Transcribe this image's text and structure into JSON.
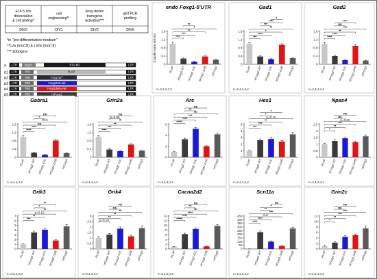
{
  "protocol": {
    "stages": [
      {
        "label": "E16.5 ncx\ndissociation\n& cell plating*",
        "day": "DIV0"
      },
      {
        "label": "cell\nengineering**",
        "day": "DIV1"
      },
      {
        "label": "doxy-driven\ntransgene\nactivation***",
        "day": "DIV2"
      },
      {
        "label": "qRTPCR\nprofiling",
        "day": "DIV6"
      }
    ],
    "notes": [
      "*in \"pro-differentiative medium\"",
      "**LVa (moi=8) & LVbs (moi=8)",
      "*** 100ng/ml"
    ]
  },
  "constructs": {
    "a": {
      "id": "a",
      "parts": [
        "LTR",
        "pSyn1",
        "rtTA-M2",
        "LTR"
      ]
    },
    "rows": [
      {
        "id": "b1",
        "payload": "PLAP"
      },
      {
        "id": "b2",
        "payload": "Foxg1WT"
      },
      {
        "id": "b3",
        "payload": "Foxg1K2L/ab"
      },
      {
        "id": "b4",
        "payload": "Foxg1delta-AB"
      },
      {
        "id": "b5",
        "payload": "mFoxg1"
      }
    ],
    "ltr": "LTR",
    "tre": "TRE"
  },
  "x_categories": [
    "PLAP",
    "hFoxg1 WT",
    "hFoxg1 K2L",
    "hFoxg1 ΔAB",
    "mFoxg1"
  ],
  "colors": {
    "PLAP": "#c8c8c8",
    "hFoxg1 WT": "#3a3a3a",
    "hFoxg1 K2L": "#1a1ad6",
    "hFoxg1 ΔAB": "#e01414",
    "mFoxg1": "#5a5a5a"
  },
  "ylabel": "[Gapdh-norm mRNA]",
  "chart_data": [
    {
      "type": "bar",
      "title": "endo Foxg1-5'UTR",
      "categories": [
        "PLAP",
        "hFoxg1 WT",
        "hFoxg1 K2L",
        "hFoxg1 ΔAB",
        "mFoxg1"
      ],
      "values": [
        1.0,
        0.28,
        0.12,
        0.38,
        0.22
      ],
      "errors": [
        0.07,
        0.03,
        0.02,
        0.05,
        0.03
      ],
      "ylim": [
        0,
        1.6
      ],
      "yticks": [
        0,
        0.4,
        0.8,
        1.2,
        1.6
      ],
      "n": "n=3,3,3,3,3",
      "ylabel": "[Gapdh-norm mRNA]",
      "sig": [
        "***",
        "***",
        "**",
        "*",
        "**"
      ]
    },
    {
      "type": "bar",
      "title": "Gad1",
      "categories": [
        "PLAP",
        "hFoxg1 WT",
        "hFoxg1 K2L",
        "hFoxg1 ΔAB",
        "mFoxg1"
      ],
      "values": [
        1.0,
        0.38,
        0.25,
        0.95,
        0.3
      ],
      "errors": [
        0.06,
        0.03,
        0.02,
        0.05,
        0.03
      ],
      "ylim": [
        0,
        1.6
      ],
      "yticks": [
        0,
        0.4,
        0.8,
        1.2,
        1.6
      ],
      "n": "n=3,4,4,4,4",
      "sig": [
        "***",
        "****",
        "*",
        "**",
        "***",
        "****",
        "*"
      ]
    },
    {
      "type": "bar",
      "title": "Gad2",
      "categories": [
        "PLAP",
        "hFoxg1 WT",
        "hFoxg1 K2L",
        "hFoxg1 ΔAB",
        "mFoxg1"
      ],
      "values": [
        1.0,
        0.4,
        0.2,
        0.9,
        0.18
      ],
      "errors": [
        0.06,
        0.03,
        0.02,
        0.05,
        0.02
      ],
      "ylim": [
        0,
        1.6
      ],
      "yticks": [
        0,
        0.4,
        0.8,
        1.2,
        1.6
      ],
      "n": "n=4,4,4,4,4",
      "sig": [
        "****",
        "****",
        "**",
        "***",
        "ns",
        "****"
      ]
    },
    {
      "type": "bar",
      "title": "Gabra1",
      "categories": [
        "PLAP",
        "hFoxg1 WT",
        "hFoxg1 K2L",
        "hFoxg1 ΔAB",
        "mFoxg1"
      ],
      "values": [
        1.0,
        0.22,
        0.12,
        0.82,
        0.2
      ],
      "errors": [
        0.06,
        0.03,
        0.02,
        0.05,
        0.03
      ],
      "ylim": [
        0,
        1.6
      ],
      "yticks": [
        0,
        0.4,
        0.8,
        1.2,
        1.6
      ],
      "n": "n=4,4,4,4,4",
      "sig": [
        "****",
        "****",
        "ns",
        "*****",
        "*",
        "ns"
      ]
    },
    {
      "type": "bar",
      "title": "Grin2a",
      "categories": [
        "PLAP",
        "hFoxg1 WT",
        "hFoxg1 K2L",
        "hFoxg1 ΔAB",
        "mFoxg1"
      ],
      "values": [
        1.0,
        0.38,
        0.3,
        0.62,
        0.32
      ],
      "errors": [
        0.06,
        0.04,
        0.03,
        0.05,
        0.03
      ],
      "ylim": [
        0,
        1.6
      ],
      "yticks": [
        0,
        0.4,
        0.8,
        1.2,
        1.6
      ],
      "n": "n=4,4,4,4,4",
      "sig": [
        "****",
        "***",
        "**",
        "**",
        "p=0.08",
        "ns"
      ]
    },
    {
      "type": "bar",
      "title": "Arc",
      "categories": [
        "PLAP",
        "hFoxg1 WT",
        "hFoxg1 K2L",
        "hFoxg1 ΔAB",
        "mFoxg1"
      ],
      "values": [
        1.0,
        3.3,
        5.2,
        2.0,
        4.2
      ],
      "errors": [
        0.1,
        0.2,
        0.25,
        0.15,
        0.2
      ],
      "ylim": [
        0,
        6
      ],
      "yticks": [
        0,
        2,
        4,
        6
      ],
      "n": "n=4,4,4,4,4",
      "sig": [
        "*****",
        "****",
        "***",
        "***",
        "**",
        "ns"
      ]
    },
    {
      "type": "bar",
      "title": "Hes1",
      "categories": [
        "PLAP",
        "hFoxg1 WT",
        "hFoxg1 K2L",
        "hFoxg1 ΔAB",
        "mFoxg1"
      ],
      "values": [
        1.0,
        2.6,
        2.8,
        2.4,
        3.5
      ],
      "errors": [
        0.1,
        0.2,
        0.2,
        0.15,
        0.3
      ],
      "ylim": [
        0,
        5
      ],
      "yticks": [
        0,
        1,
        2,
        3,
        4,
        5
      ],
      "n": "n=3,4,4,4,4",
      "sig": [
        "***",
        "***",
        "**",
        "p=0.10",
        "*",
        "*"
      ]
    },
    {
      "type": "bar",
      "title": "Npas4",
      "categories": [
        "PLAP",
        "hFoxg1 WT",
        "hFoxg1 K2L",
        "hFoxg1 ΔAB",
        "mFoxg1"
      ],
      "values": [
        1.0,
        1.25,
        1.45,
        1.15,
        1.6
      ],
      "errors": [
        0.08,
        0.08,
        0.08,
        0.07,
        0.1
      ],
      "ylim": [
        0,
        2.5
      ],
      "yticks": [
        0,
        0.5,
        1,
        1.5,
        2,
        2.5
      ],
      "n": "n=4,4,3,4,4",
      "sig": [
        "*",
        "**",
        "***",
        "p=0.08",
        "ns",
        "ns"
      ]
    },
    {
      "type": "bar",
      "title": "Grik3",
      "categories": [
        "PLAP",
        "hFoxg1 WT",
        "hFoxg1 K2L",
        "hFoxg1 ΔAB",
        "mFoxg1"
      ],
      "values": [
        1.0,
        3.5,
        4.1,
        1.8,
        4.8
      ],
      "errors": [
        0.1,
        0.3,
        0.3,
        0.15,
        0.4
      ],
      "ylim": [
        0,
        7
      ],
      "yticks": [
        0,
        1,
        2,
        3,
        4,
        5,
        6,
        7
      ],
      "n": "n=3,3,3,3,3",
      "sig": [
        "***",
        "**",
        "p=0.10",
        "**",
        "*",
        "**"
      ]
    },
    {
      "type": "bar",
      "title": "Grik4",
      "categories": [
        "PLAP",
        "hFoxg1 WT",
        "hFoxg1 K2L",
        "hFoxg1 ΔAB",
        "mFoxg1"
      ],
      "values": [
        1.0,
        1.3,
        1.85,
        1.15,
        1.9
      ],
      "errors": [
        0.12,
        0.12,
        0.15,
        0.1,
        0.2
      ],
      "ylim": [
        0,
        3
      ],
      "yticks": [
        0,
        0.5,
        1,
        1.5,
        2,
        2.5,
        3
      ],
      "n": "n=4,4,4,4,4",
      "sig": [
        "p=0.10",
        "**",
        "**",
        "**",
        "ns",
        "ns"
      ]
    },
    {
      "type": "bar",
      "title": "Cacna2d2",
      "categories": [
        "PLAP",
        "hFoxg1 WT",
        "hFoxg1 K2L",
        "hFoxg1 ΔAB",
        "mFoxg1"
      ],
      "values": [
        1.0,
        6.3,
        8.5,
        1.1,
        9.8
      ],
      "errors": [
        0.1,
        0.4,
        0.5,
        0.1,
        0.6
      ],
      "ylim": [
        0,
        14
      ],
      "yticks": [
        0,
        2,
        4,
        6,
        8,
        10,
        12,
        14
      ],
      "n": "n=4,4,4,4,4",
      "sig": [
        "*****",
        "****",
        "****",
        "***",
        "**",
        "ns"
      ]
    },
    {
      "type": "bar",
      "title": "Scn11a",
      "categories": [
        "PLAP",
        "hFoxg1 WT",
        "hFoxg1 K2L",
        "hFoxg1 ΔAB",
        "mFoxg1"
      ],
      "values": [
        1.0,
        230,
        100,
        40,
        280
      ],
      "errors": [
        0.5,
        15,
        8,
        5,
        18
      ],
      "ylim": [
        0,
        450
      ],
      "yticks": [
        0,
        50,
        100,
        150,
        200,
        250,
        300,
        350,
        400,
        450
      ],
      "n": "n=4,4,4,4,4",
      "sig": [
        "****",
        "****",
        "****",
        "***",
        "**",
        "*",
        "ns"
      ]
    },
    {
      "type": "bar",
      "title": "Grin2c",
      "categories": [
        "PLAP",
        "hFoxg1 WT",
        "hFoxg1 K2L",
        "hFoxg1 ΔAB",
        "mFoxg1"
      ],
      "values": [
        1.0,
        2.3,
        4.4,
        5.0,
        7.5
      ],
      "errors": [
        0.4,
        0.3,
        0.4,
        0.4,
        0.9
      ],
      "ylim": [
        0,
        12
      ],
      "yticks": [
        0,
        2,
        4,
        6,
        8,
        10,
        12
      ],
      "n": "n=4,4,4,4,4",
      "sig": [
        "*",
        "**",
        "***",
        "***",
        "ns",
        "ns"
      ]
    }
  ]
}
